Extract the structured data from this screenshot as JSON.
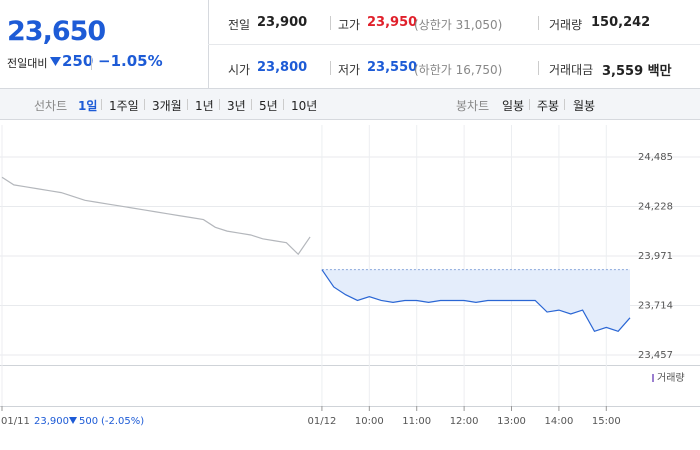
{
  "header": {
    "price": "23,650",
    "change_label": "전일대비",
    "change": "250",
    "change_pct": "−1.05%"
  },
  "stats": [
    {
      "label": "전일",
      "value": "23,900"
    },
    {
      "label": "고가",
      "value": "23,950",
      "limit": "(상한가 31,050)"
    },
    {
      "label": "거래량",
      "value": "150,242"
    },
    {
      "label": "시가",
      "value": "23,800"
    },
    {
      "label": "저가",
      "value": "23,550",
      "limit": "(하한가 16,750)"
    },
    {
      "label": "거래대금",
      "value": "3,559 백만"
    }
  ],
  "tabs": {
    "line_label": "선차트",
    "line_periods": [
      "1일",
      "1주일",
      "3개월",
      "1년",
      "3년",
      "5년",
      "10년"
    ],
    "candle_label": "봉차트",
    "candle_periods": [
      "일봉",
      "주봉",
      "월봉"
    ]
  },
  "chart_data": {
    "type": "line",
    "categories": [
      "01/11",
      null,
      null,
      null,
      null,
      null,
      null,
      null,
      null,
      null,
      null,
      null,
      null,
      null,
      null,
      null,
      null,
      null,
      null,
      null,
      null,
      null,
      null,
      null,
      null,
      null,
      null,
      "01/12",
      null,
      null,
      null,
      "10:00",
      null,
      null,
      null,
      "11:00",
      null,
      null,
      null,
      "12:00",
      null,
      null,
      null,
      "13:00",
      null,
      null,
      null,
      "14:00",
      null,
      null,
      null,
      "15:00",
      null,
      null
    ],
    "series": [
      {
        "name": "01/11",
        "color": "#b4b7bc",
        "values": [
          24380,
          24340,
          24330,
          24320,
          24310,
          24300,
          24280,
          24260,
          24250,
          24240,
          24230,
          24220,
          24210,
          24200,
          24190,
          24180,
          24170,
          24160,
          24120,
          24100,
          24090,
          24080,
          24060,
          24050,
          24040,
          23980,
          24070,
          null,
          null,
          null,
          null,
          null,
          null,
          null,
          null,
          null,
          null,
          null,
          null,
          null,
          null,
          null,
          null,
          null,
          null,
          null,
          null,
          null,
          null,
          null,
          null,
          null,
          null,
          null
        ]
      },
      {
        "name": "01/12",
        "color": "#2a66d4",
        "values": [
          null,
          null,
          null,
          null,
          null,
          null,
          null,
          null,
          null,
          null,
          null,
          null,
          null,
          null,
          null,
          null,
          null,
          null,
          null,
          null,
          null,
          null,
          null,
          null,
          null,
          null,
          null,
          23900,
          23810,
          23770,
          23740,
          23760,
          23740,
          23730,
          23740,
          23740,
          23730,
          23740,
          23740,
          23740,
          23730,
          23740,
          23740,
          23740,
          23740,
          23740,
          23680,
          23690,
          23670,
          23690,
          23580,
          23600,
          23580,
          23650
        ]
      }
    ],
    "baseline": 23900,
    "ylim": [
      23405,
      24651
    ],
    "yticks": [
      {
        "value": 24485,
        "label": "24,485"
      },
      {
        "value": 24228,
        "label": "24,228"
      },
      {
        "value": 23971,
        "label": "23,971"
      },
      {
        "value": 23714,
        "label": "23,714"
      },
      {
        "value": 23457,
        "label": "23,457"
      }
    ],
    "grid": true,
    "volume_legend": "거래량",
    "prev_summary": {
      "close": "23,900",
      "change": "500",
      "pct": "(-2.05%)"
    }
  }
}
